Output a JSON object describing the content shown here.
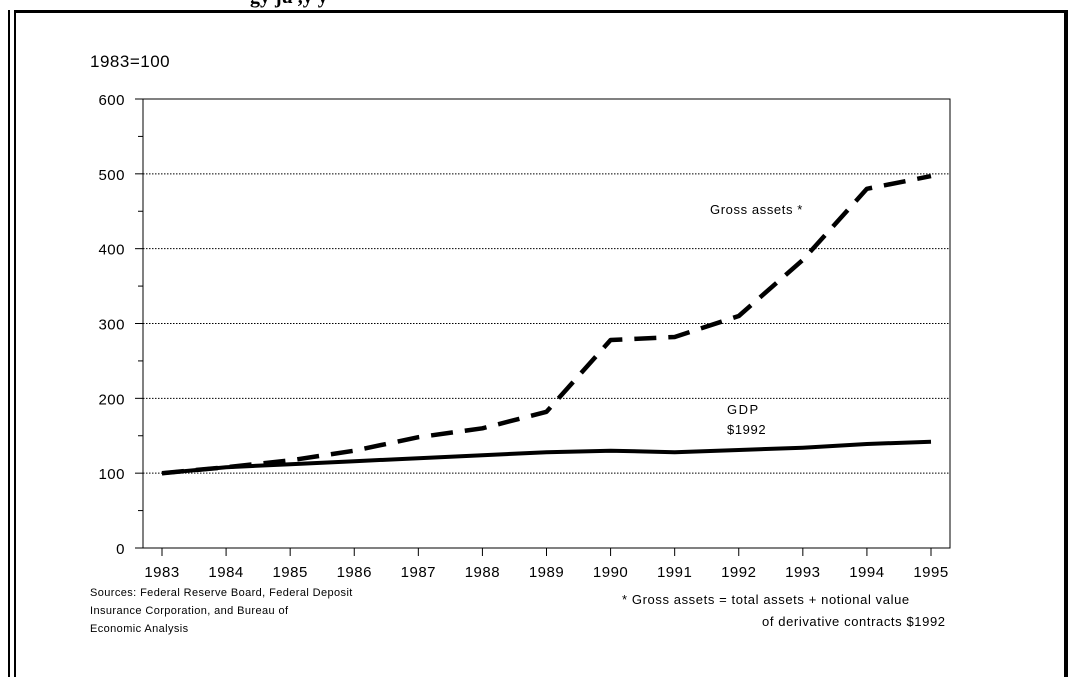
{
  "header": {
    "title_fragment": "gy ju         ,y       y"
  },
  "chart_data": {
    "type": "line",
    "unit_label": "1983=100",
    "x": [
      "1983",
      "1984",
      "1985",
      "1986",
      "1987",
      "1988",
      "1989",
      "1990",
      "1991",
      "1992",
      "1993",
      "1994",
      "1995"
    ],
    "ylim": [
      0,
      600
    ],
    "yticks": [
      "0",
      "100",
      "200",
      "300",
      "400",
      "500",
      "600"
    ],
    "grid": true,
    "series": [
      {
        "name": "Gross assets *",
        "style": "dashed",
        "values": [
          100,
          108,
          117,
          130,
          148,
          160,
          182,
          278,
          282,
          310,
          385,
          480,
          497
        ]
      },
      {
        "name": "GDP\n$1992",
        "style": "solid",
        "values": [
          100,
          108,
          112,
          116,
          120,
          124,
          128,
          130,
          128,
          131,
          134,
          139,
          142
        ]
      }
    ],
    "annotations": {
      "gross_label": "Gross assets *",
      "gdp_label_line1": "GDP",
      "gdp_label_line2": "$1992"
    }
  },
  "sources": {
    "line1": "Sources: Federal Reserve Board, Federal Deposit",
    "line2": "Insurance Corporation, and Bureau of",
    "line3": "Economic Analysis"
  },
  "footnote": {
    "line1": "*  Gross assets = total assets + notional value",
    "line2": "of derivative contracts  $1992"
  },
  "colors": {
    "ink": "#000000",
    "background": "#ffffff"
  }
}
